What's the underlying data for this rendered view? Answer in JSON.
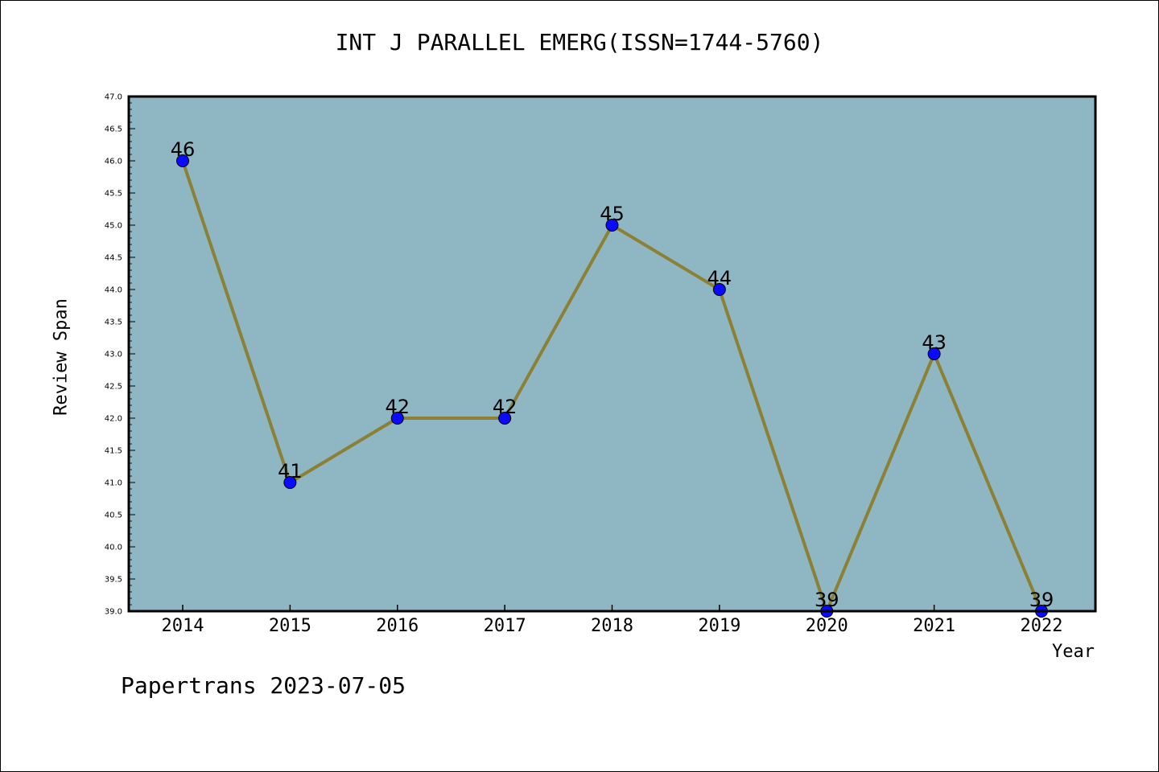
{
  "page": {
    "footer": "Papertrans 2023-07-05"
  },
  "chart_data": {
    "type": "line",
    "title": "INT J PARALLEL EMERG(ISSN=1744-5760)",
    "xlabel": "Year",
    "ylabel": "Review Span",
    "categories": [
      "2014",
      "2015",
      "2016",
      "2017",
      "2018",
      "2019",
      "2020",
      "2021",
      "2022"
    ],
    "series": [
      {
        "values": [
          46,
          41,
          42,
          42,
          45,
          44,
          39,
          43,
          39
        ]
      }
    ],
    "ylim": [
      39.0,
      47.0
    ],
    "yticks": [
      "39.0",
      "39.5",
      "40.0",
      "40.5",
      "41.0",
      "41.5",
      "42.0",
      "42.5",
      "43.0",
      "43.5",
      "44.0",
      "44.5",
      "45.0",
      "45.5",
      "46.0",
      "46.5",
      "47.0"
    ],
    "grid": false,
    "colors": {
      "plot_bg": "#8fb6c3",
      "line": "#8b8033",
      "marker": "#0a0aff"
    }
  }
}
